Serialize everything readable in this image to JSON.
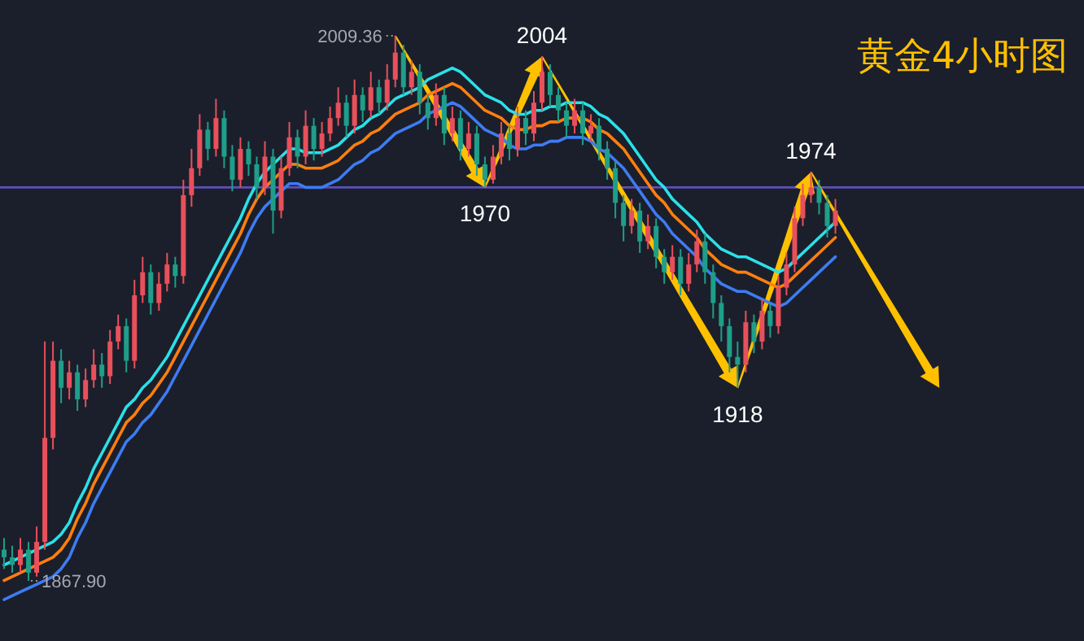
{
  "chart_data": {
    "type": "candlestick",
    "title": "黄金4小时图",
    "tick_labels": false,
    "categories": [
      null,
      null,
      null,
      null,
      null,
      null,
      null,
      null,
      null,
      null,
      null,
      null,
      null,
      null,
      null,
      null,
      null,
      null,
      null,
      null,
      null,
      null,
      null,
      null,
      null,
      null,
      null,
      null,
      null,
      null,
      null,
      null,
      null,
      null,
      null,
      null,
      null,
      null,
      null,
      null,
      null,
      null,
      null,
      null,
      null,
      null,
      null,
      null,
      null,
      null,
      null,
      null,
      null,
      null,
      null,
      null,
      null,
      null,
      null,
      null,
      null,
      null,
      null,
      null,
      null,
      null,
      null,
      null,
      null,
      null,
      null,
      null,
      null,
      null,
      null,
      null,
      null,
      null,
      null,
      null,
      null,
      null,
      null,
      null,
      null,
      null,
      null,
      null,
      null,
      null,
      null,
      null,
      null,
      null,
      null,
      null,
      null,
      null,
      null,
      null,
      null,
      null,
      null,
      null,
      null,
      null,
      null,
      null,
      null,
      null,
      null,
      null,
      null,
      null,
      null,
      null,
      null,
      null,
      null,
      null,
      null,
      null,
      null,
      null,
      null,
      null,
      null,
      null,
      null,
      null,
      null,
      null,
      null
    ],
    "ohlc": [
      [
        1876,
        1879,
        1871,
        1874
      ],
      [
        1874,
        1877,
        1870,
        1872
      ],
      [
        1872,
        1879,
        1870,
        1876
      ],
      [
        1876,
        1878,
        1867.9,
        1870
      ],
      [
        1870,
        1882,
        1869,
        1878
      ],
      [
        1878,
        1930,
        1876,
        1905
      ],
      [
        1905,
        1930,
        1902,
        1925
      ],
      [
        1925,
        1928,
        1914,
        1918
      ],
      [
        1918,
        1925,
        1915,
        1922
      ],
      [
        1922,
        1924,
        1912,
        1915
      ],
      [
        1915,
        1923,
        1913,
        1920
      ],
      [
        1920,
        1928,
        1918,
        1924
      ],
      [
        1924,
        1927,
        1918,
        1921
      ],
      [
        1921,
        1933,
        1919,
        1930
      ],
      [
        1930,
        1937,
        1928,
        1934
      ],
      [
        1934,
        1936,
        1922,
        1925
      ],
      [
        1925,
        1946,
        1923,
        1942
      ],
      [
        1942,
        1952,
        1940,
        1948
      ],
      [
        1948,
        1950,
        1937,
        1940
      ],
      [
        1940,
        1948,
        1938,
        1945
      ],
      [
        1945,
        1953,
        1943,
        1950
      ],
      [
        1950,
        1952,
        1944,
        1947
      ],
      [
        1947,
        1972,
        1945,
        1968
      ],
      [
        1968,
        1980,
        1965,
        1975
      ],
      [
        1975,
        1989,
        1973,
        1985
      ],
      [
        1985,
        1987,
        1977,
        1980
      ],
      [
        1980,
        1993,
        1978,
        1988
      ],
      [
        1988,
        1990,
        1975,
        1978
      ],
      [
        1978,
        1981,
        1969,
        1972
      ],
      [
        1972,
        1983,
        1970,
        1980
      ],
      [
        1980,
        1982,
        1973,
        1976
      ],
      [
        1976,
        1978,
        1967,
        1970
      ],
      [
        1970,
        1982,
        1968,
        1978
      ],
      [
        1978,
        1980,
        1958,
        1964
      ],
      [
        1964,
        1978,
        1962,
        1975
      ],
      [
        1975,
        1987,
        1973,
        1983
      ],
      [
        1983,
        1985,
        1975,
        1978
      ],
      [
        1978,
        1990,
        1976,
        1986
      ],
      [
        1986,
        1988,
        1977,
        1980
      ],
      [
        1980,
        1987,
        1978,
        1984
      ],
      [
        1984,
        1991,
        1982,
        1988
      ],
      [
        1988,
        1996,
        1986,
        1992
      ],
      [
        1992,
        1994,
        1983,
        1986
      ],
      [
        1986,
        1998,
        1984,
        1994
      ],
      [
        1994,
        1996,
        1987,
        1990
      ],
      [
        1990,
        2000,
        1988,
        1996
      ],
      [
        1996,
        1998,
        1989,
        1992
      ],
      [
        1992,
        2002,
        1990,
        1998
      ],
      [
        1998,
        2009.36,
        1996,
        2005
      ],
      [
        2005,
        2007,
        1994,
        1996
      ],
      [
        1996,
        2003,
        1994,
        2000
      ],
      [
        2000,
        2002,
        1989,
        1992
      ],
      [
        1992,
        1994,
        1985,
        1988
      ],
      [
        1988,
        1997,
        1986,
        1994
      ],
      [
        1994,
        1996,
        1981,
        1984
      ],
      [
        1984,
        1991,
        1982,
        1988
      ],
      [
        1988,
        1990,
        1977,
        1980
      ],
      [
        1980,
        1987,
        1978,
        1984
      ],
      [
        1984,
        1986,
        1973,
        1976
      ],
      [
        1976,
        1978,
        1970,
        1972
      ],
      [
        1972,
        1981,
        1971,
        1978
      ],
      [
        1978,
        1987,
        1976,
        1984
      ],
      [
        1984,
        1986,
        1977,
        1980
      ],
      [
        1980,
        1991,
        1978,
        1988
      ],
      [
        1988,
        1990,
        1981,
        1984
      ],
      [
        1984,
        1995,
        1982,
        1992
      ],
      [
        1992,
        2004,
        1990,
        2000
      ],
      [
        2000,
        2002,
        1991,
        1994
      ],
      [
        1994,
        1996,
        1987,
        1990
      ],
      [
        1990,
        1992,
        1983,
        1986
      ],
      [
        1986,
        1993,
        1984,
        1990
      ],
      [
        1990,
        1992,
        1981,
        1984
      ],
      [
        1984,
        1989,
        1982,
        1986
      ],
      [
        1986,
        1988,
        1977,
        1980
      ],
      [
        1980,
        1982,
        1972,
        1975
      ],
      [
        1975,
        1977,
        1962,
        1966
      ],
      [
        1966,
        1968,
        1956,
        1960
      ],
      [
        1960,
        1967,
        1958,
        1964
      ],
      [
        1964,
        1966,
        1953,
        1956
      ],
      [
        1956,
        1963,
        1954,
        1960
      ],
      [
        1960,
        1962,
        1949,
        1952
      ],
      [
        1952,
        1954,
        1945,
        1948
      ],
      [
        1948,
        1955,
        1946,
        1952
      ],
      [
        1952,
        1954,
        1942,
        1945
      ],
      [
        1945,
        1953,
        1943,
        1950
      ],
      [
        1950,
        1959,
        1948,
        1956
      ],
      [
        1956,
        1958,
        1945,
        1948
      ],
      [
        1948,
        1950,
        1936,
        1940
      ],
      [
        1940,
        1942,
        1930,
        1934
      ],
      [
        1934,
        1936,
        1922,
        1926
      ],
      [
        1926,
        1930,
        1918,
        1924
      ],
      [
        1924,
        1938,
        1922,
        1935
      ],
      [
        1935,
        1937,
        1927,
        1930
      ],
      [
        1930,
        1941,
        1928,
        1938
      ],
      [
        1938,
        1940,
        1931,
        1934
      ],
      [
        1934,
        1947,
        1932,
        1944
      ],
      [
        1944,
        1953,
        1942,
        1950
      ],
      [
        1950,
        1965,
        1948,
        1962
      ],
      [
        1962,
        1971,
        1960,
        1968
      ],
      [
        1968,
        1974,
        1966,
        1970
      ],
      [
        1970,
        1972,
        1963,
        1966
      ],
      [
        1966,
        1968,
        1957,
        1960
      ],
      [
        1960,
        1967,
        1958,
        1964
      ],
      null,
      null,
      null,
      null,
      null,
      null,
      null,
      null,
      null,
      null,
      null,
      null,
      null,
      null,
      null,
      null,
      null,
      null,
      null,
      null,
      null,
      null,
      null,
      null,
      null,
      null,
      null,
      null,
      null,
      null
    ],
    "colors": [
      "#1f9e89",
      "#1f9e89",
      "#e8505b",
      "#1f9e89",
      "#e8505b",
      "#e8505b",
      "#e8505b",
      "#1f9e89",
      "#e8505b",
      "#1f9e89",
      "#e8505b",
      "#e8505b",
      "#1f9e89",
      "#e8505b",
      "#e8505b",
      "#1f9e89",
      "#e8505b",
      "#e8505b",
      "#1f9e89",
      "#e8505b",
      "#e8505b",
      "#1f9e89",
      "#e8505b",
      "#e8505b",
      "#e8505b",
      "#1f9e89",
      "#e8505b",
      "#1f9e89",
      "#1f9e89",
      "#e8505b",
      "#1f9e89",
      "#1f9e89",
      "#e8505b",
      "#1f9e89",
      "#e8505b",
      "#e8505b",
      "#1f9e89",
      "#e8505b",
      "#1f9e89",
      "#e8505b",
      "#e8505b",
      "#e8505b",
      "#1f9e89",
      "#e8505b",
      "#1f9e89",
      "#e8505b",
      "#1f9e89",
      "#e8505b",
      "#e8505b",
      "#1f9e89",
      "#e8505b",
      "#1f9e89",
      "#1f9e89",
      "#e8505b",
      "#1f9e89",
      "#e8505b",
      "#1f9e89",
      "#e8505b",
      "#1f9e89",
      "#1f9e89",
      "#e8505b",
      "#e8505b",
      "#1f9e89",
      "#e8505b",
      "#1f9e89",
      "#e8505b",
      "#e8505b",
      "#1f9e89",
      "#1f9e89",
      "#1f9e89",
      "#e8505b",
      "#1f9e89",
      "#e8505b",
      "#1f9e89",
      "#1f9e89",
      "#1f9e89",
      "#1f9e89",
      "#e8505b",
      "#1f9e89",
      "#e8505b",
      "#1f9e89",
      "#1f9e89",
      "#e8505b",
      "#1f9e89",
      "#e8505b",
      "#e8505b",
      "#1f9e89",
      "#1f9e89",
      "#1f9e89",
      "#1f9e89",
      "#1f9e89",
      "#e8505b",
      "#1f9e89",
      "#e8505b",
      "#1f9e89",
      "#e8505b",
      "#e8505b",
      "#e8505b",
      "#e8505b",
      "#e8505b",
      "#1f9e89",
      "#1f9e89",
      "#e8505b",
      null,
      null,
      null,
      null,
      null,
      null,
      null,
      null,
      null,
      null,
      null,
      null,
      null,
      null,
      null,
      null,
      null,
      null,
      null,
      null,
      null,
      null,
      null,
      null,
      null,
      null,
      null,
      null,
      null,
      null
    ],
    "series": [
      {
        "type": "line",
        "color": "#2be0e8",
        "values": [
          1872,
          1873,
          1874,
          1875,
          1876,
          1877,
          1878,
          1880,
          1883,
          1888,
          1892,
          1897,
          1901,
          1905,
          1909,
          1913,
          1915,
          1918,
          1920,
          1923,
          1926,
          1930,
          1934,
          1938,
          1942,
          1946,
          1950,
          1954,
          1958,
          1962,
          1967,
          1971,
          1974,
          1976,
          1978,
          1980,
          1980,
          1979,
          1979,
          1979,
          1980,
          1981,
          1983,
          1985,
          1986,
          1988,
          1989,
          1991,
          1993,
          1994,
          1995,
          1996,
          1998,
          1999,
          2000,
          2001,
          2000,
          1998,
          1996,
          1994,
          1993,
          1992,
          1990,
          1989,
          1989,
          1990,
          1990,
          1991,
          1991,
          1992,
          1992,
          1992,
          1991,
          1989,
          1988,
          1986,
          1984,
          1981,
          1978,
          1975,
          1972,
          1970,
          1967,
          1965,
          1963,
          1961,
          1958,
          1956,
          1954,
          1953,
          1952,
          1952,
          1951,
          1950,
          1949,
          1948,
          1949,
          1951,
          1953,
          1955,
          1957,
          1959,
          1961,
          null,
          null,
          null,
          null,
          null,
          null,
          null,
          null,
          null,
          null,
          null,
          null,
          null,
          null,
          null,
          null,
          null,
          null,
          null,
          null,
          null,
          null,
          null,
          null,
          null,
          null,
          null,
          null,
          null,
          null
        ]
      },
      {
        "type": "line",
        "color": "#ff7f0e",
        "values": [
          1868,
          1869,
          1870,
          1871,
          1872,
          1873,
          1874,
          1876,
          1879,
          1884,
          1888,
          1893,
          1897,
          1901,
          1905,
          1909,
          1911,
          1914,
          1916,
          1919,
          1922,
          1926,
          1930,
          1934,
          1938,
          1942,
          1946,
          1950,
          1954,
          1958,
          1963,
          1967,
          1970,
          1972,
          1974,
          1976,
          1976,
          1975,
          1975,
          1975,
          1976,
          1977,
          1979,
          1981,
          1982,
          1984,
          1985,
          1987,
          1989,
          1990,
          1991,
          1992,
          1994,
          1995,
          1996,
          1997,
          1996,
          1994,
          1992,
          1990,
          1989,
          1988,
          1986,
          1985,
          1985,
          1986,
          1986,
          1987,
          1987,
          1988,
          1988,
          1988,
          1987,
          1985,
          1984,
          1982,
          1980,
          1977,
          1974,
          1971,
          1968,
          1966,
          1963,
          1961,
          1959,
          1957,
          1954,
          1952,
          1950,
          1949,
          1948,
          1948,
          1947,
          1946,
          1945,
          1944,
          1945,
          1947,
          1949,
          1951,
          1953,
          1955,
          1957,
          null,
          null,
          null,
          null,
          null,
          null,
          null,
          null,
          null,
          null,
          null,
          null,
          null,
          null,
          null,
          null,
          null,
          null,
          null,
          null,
          null,
          null,
          null,
          null,
          null,
          null,
          null,
          null,
          null,
          null
        ]
      },
      {
        "type": "line",
        "color": "#3d7cf2",
        "values": [
          1863,
          1864,
          1865,
          1866,
          1867,
          1868,
          1869,
          1871,
          1874,
          1879,
          1883,
          1888,
          1892,
          1896,
          1900,
          1904,
          1906,
          1909,
          1911,
          1914,
          1917,
          1921,
          1925,
          1929,
          1933,
          1937,
          1941,
          1945,
          1949,
          1953,
          1958,
          1962,
          1965,
          1967,
          1969,
          1971,
          1971,
          1970,
          1970,
          1970,
          1971,
          1972,
          1974,
          1976,
          1977,
          1979,
          1980,
          1982,
          1984,
          1985,
          1986,
          1987,
          1989,
          1990,
          1991,
          1992,
          1991,
          1989,
          1987,
          1985,
          1984,
          1983,
          1981,
          1980,
          1980,
          1981,
          1981,
          1982,
          1982,
          1983,
          1983,
          1983,
          1982,
          1980,
          1979,
          1977,
          1975,
          1972,
          1969,
          1966,
          1963,
          1961,
          1958,
          1956,
          1954,
          1952,
          1949,
          1947,
          1945,
          1944,
          1943,
          1943,
          1942,
          1941,
          1940,
          1939,
          1940,
          1942,
          1944,
          1946,
          1948,
          1950,
          1952,
          null,
          null,
          null,
          null,
          null,
          null,
          null,
          null,
          null,
          null,
          null,
          null,
          null,
          null,
          null,
          null,
          null,
          null,
          null,
          null,
          null,
          null,
          null,
          null,
          null,
          null,
          null,
          null,
          null,
          null
        ]
      }
    ],
    "ref_lines": [
      {
        "axis": "y",
        "value": 1970,
        "color": "#5e4fb8"
      }
    ],
    "annotations": [
      "1867.90",
      "2009.36",
      {
        "text": "1970",
        "y": 1970
      },
      {
        "text": "2004",
        "y": 2004
      },
      {
        "text": "1918",
        "y": 1918
      },
      {
        "text": "1974",
        "y": 1974
      }
    ]
  }
}
